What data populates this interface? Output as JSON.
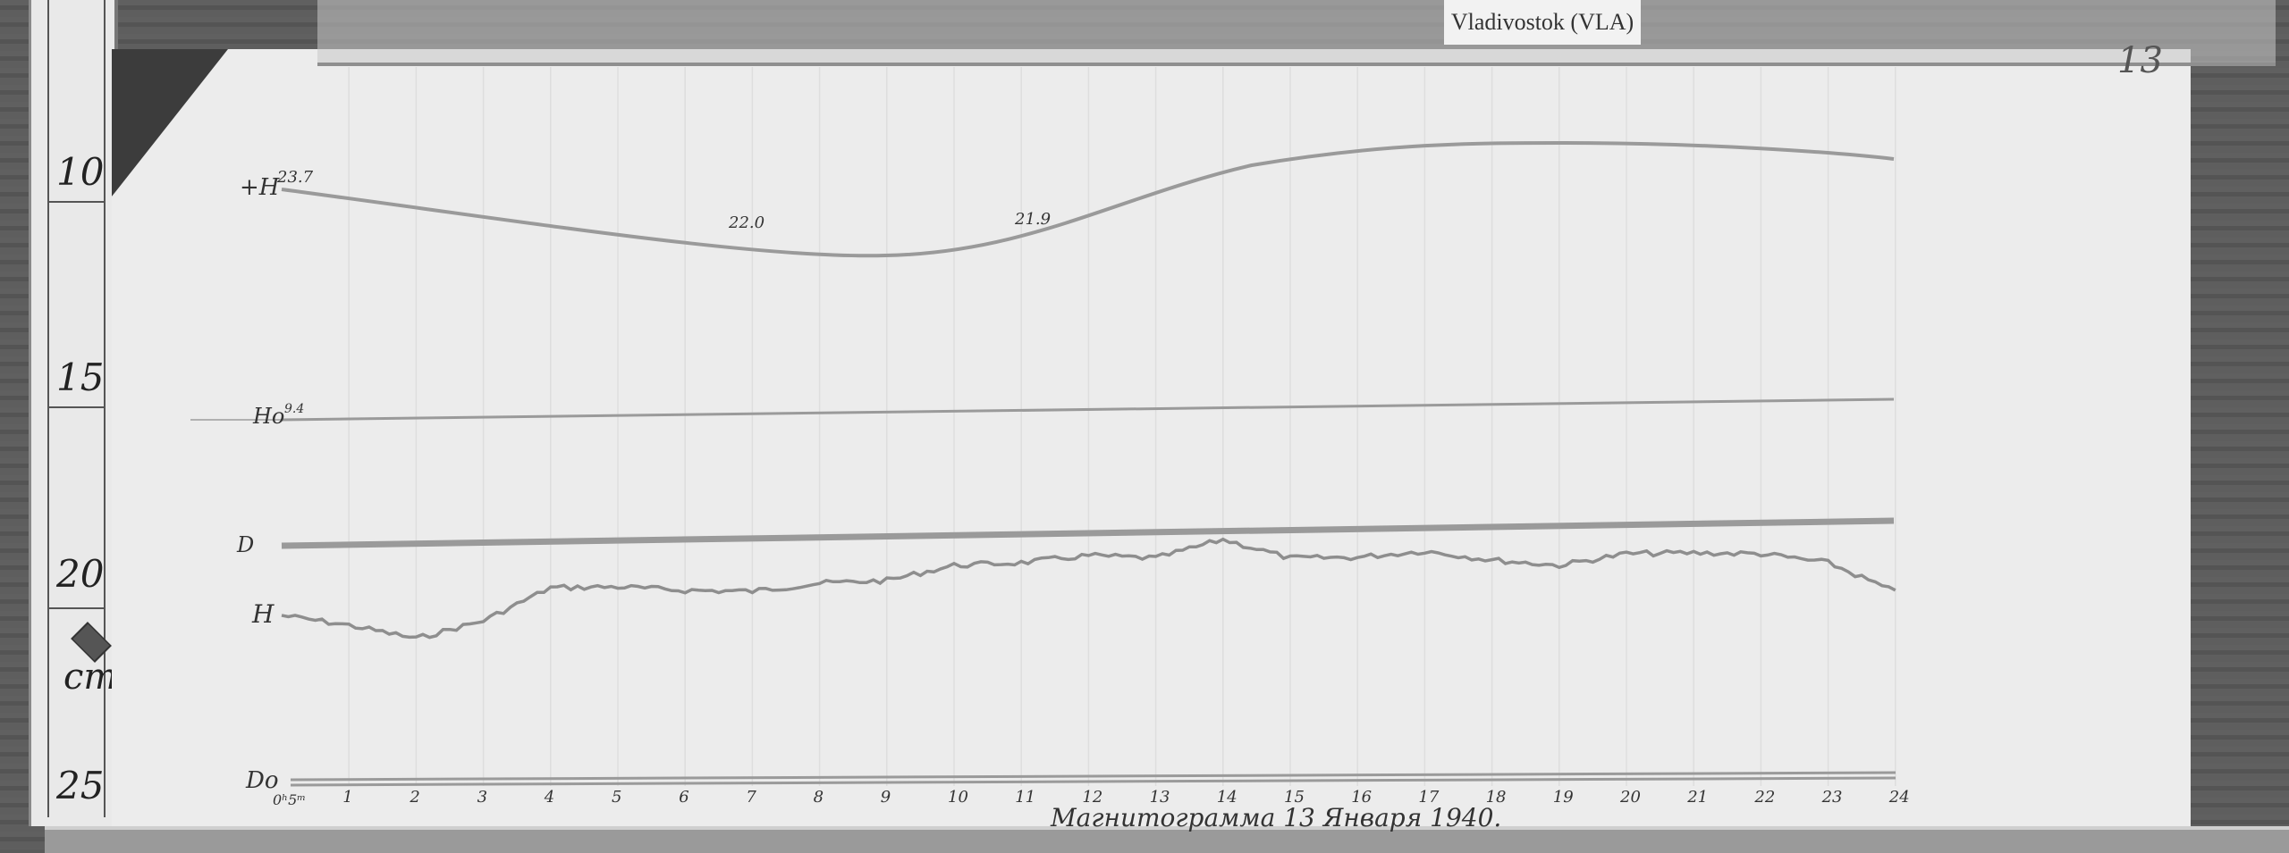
{
  "header": {
    "station_label": "Vladivostok (VLA)",
    "sheet_number": "13"
  },
  "ruler": {
    "marks": [
      "10",
      "15",
      "20",
      "25"
    ],
    "unit": "cm"
  },
  "traces": {
    "z_label": "+H",
    "z_start_value": "23.7",
    "z_annotations": [
      "22.0",
      "21.9"
    ],
    "h0_label": "Ho",
    "h0_sup": "9.4",
    "d_label": "D",
    "h_label": "H",
    "d0_label": "Do"
  },
  "axis": {
    "start_label": "0ʰ5ᵐ",
    "hours": [
      "1",
      "2",
      "3",
      "4",
      "5",
      "6",
      "7",
      "8",
      "9",
      "10",
      "11",
      "12",
      "13",
      "14",
      "15",
      "16",
      "17",
      "18",
      "19",
      "20",
      "21",
      "22",
      "23",
      "24"
    ]
  },
  "caption": "Магнитограмма 13 Января 1940.",
  "colors": {
    "paper": "#ececec",
    "trace": "#9a9a9a",
    "ink": "#333333"
  }
}
